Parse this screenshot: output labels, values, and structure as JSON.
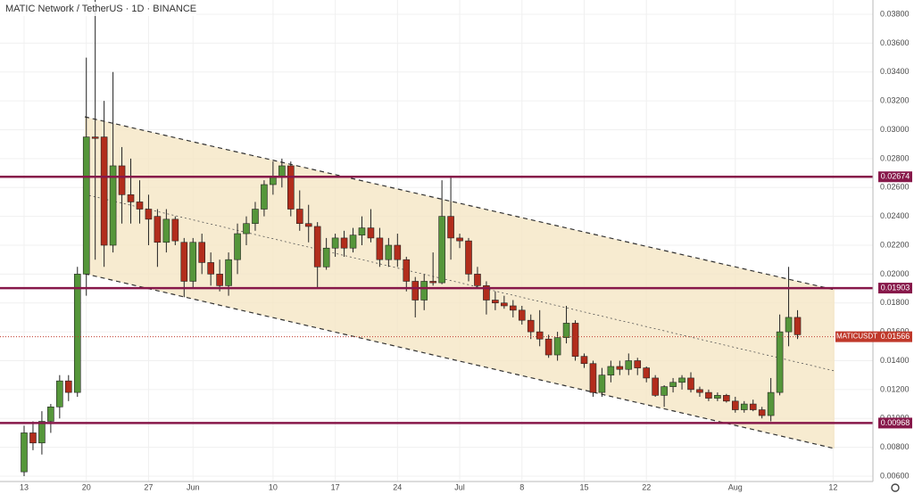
{
  "chart_data": {
    "type": "candlestick",
    "symbol": "MATIC Network / TetherUS",
    "interval": "1D",
    "exchange": "BINANCE",
    "categories": [
      "13",
      null,
      null,
      null,
      null,
      null,
      null,
      "20",
      null,
      null,
      null,
      null,
      null,
      null,
      "27",
      null,
      null,
      null,
      null,
      "Jun",
      null,
      null,
      null,
      null,
      null,
      null,
      null,
      null,
      "10",
      null,
      null,
      null,
      null,
      null,
      null,
      "17",
      null,
      null,
      null,
      null,
      null,
      null,
      "24",
      null,
      null,
      null,
      null,
      null,
      null,
      "Jul",
      null,
      null,
      null,
      null,
      null,
      null,
      "8",
      null,
      null,
      null,
      null,
      null,
      null,
      "15",
      null,
      null,
      null,
      null,
      null,
      null,
      "22",
      null,
      null,
      null,
      null,
      null,
      null,
      null,
      null,
      null,
      "Aug",
      null,
      null,
      null,
      null,
      null,
      null,
      null,
      null,
      null,
      null,
      "12"
    ],
    "open": [
      0.0063,
      0.009,
      0.0083,
      0.0098,
      0.0108,
      0.0126,
      0.0118,
      0.02,
      0.0295,
      0.0295,
      0.022,
      0.0275,
      0.0255,
      0.025,
      0.0245,
      0.024,
      0.0222,
      0.0238,
      0.0222,
      0.0195,
      0.0222,
      0.0208,
      0.02,
      0.0192,
      0.021,
      0.0228,
      0.0235,
      0.0245,
      0.0262,
      0.0268,
      0.0275,
      0.0245,
      0.0235,
      0.0233,
      0.0205,
      0.0218,
      0.0225,
      0.0218,
      0.0227,
      0.0232,
      0.0225,
      0.021,
      0.022,
      0.021,
      0.0195,
      0.0182,
      0.0195,
      0.0194,
      0.024,
      0.0225,
      0.0223,
      0.02,
      0.0192,
      0.0182,
      0.018,
      0.0178,
      0.0175,
      0.0168,
      0.016,
      0.0155,
      0.0144,
      0.0156,
      0.0166,
      0.0143,
      0.0138,
      0.0118,
      0.013,
      0.0136,
      0.0134,
      0.014,
      0.0135,
      0.0128,
      0.0116,
      0.0122,
      0.0125,
      0.0128,
      0.012,
      0.0118,
      0.0114,
      0.0116,
      0.0112,
      0.0106,
      0.011,
      0.0106,
      0.0102,
      0.0118,
      0.016,
      0.017,
      null,
      null,
      null,
      null
    ],
    "high": [
      0.0095,
      0.0098,
      0.0105,
      0.011,
      0.013,
      0.013,
      0.0205,
      0.035,
      0.039,
      0.032,
      0.034,
      0.0288,
      0.028,
      0.0265,
      0.0255,
      0.0245,
      0.0245,
      0.024,
      0.0225,
      0.0225,
      0.0228,
      0.0215,
      0.021,
      0.0215,
      0.0235,
      0.024,
      0.025,
      0.0265,
      0.0278,
      0.028,
      0.0278,
      0.0258,
      0.0248,
      0.0236,
      0.0225,
      0.0228,
      0.023,
      0.0232,
      0.024,
      0.0245,
      0.0232,
      0.0225,
      0.0228,
      0.0212,
      0.0198,
      0.02,
      0.0215,
      0.0265,
      0.0268,
      0.0228,
      0.0225,
      0.0205,
      0.0195,
      0.0188,
      0.0185,
      0.0182,
      0.0178,
      0.0172,
      0.0175,
      0.0158,
      0.016,
      0.0178,
      0.0168,
      0.0145,
      0.014,
      0.0135,
      0.014,
      0.014,
      0.0145,
      0.0142,
      0.0136,
      0.013,
      0.0123,
      0.0128,
      0.013,
      0.0132,
      0.0122,
      0.012,
      0.0118,
      0.0117,
      0.0115,
      0.0112,
      0.0113,
      0.0108,
      0.0128,
      0.0172,
      0.0205,
      0.0175,
      null,
      null,
      null,
      null
    ],
    "low": [
      0.006,
      0.0078,
      0.0075,
      0.009,
      0.01,
      0.0112,
      0.0115,
      0.0185,
      0.021,
      0.0205,
      0.0215,
      0.0235,
      0.0235,
      0.0235,
      0.022,
      0.0205,
      0.0215,
      0.022,
      0.0184,
      0.019,
      0.02,
      0.0192,
      0.0188,
      0.0185,
      0.02,
      0.022,
      0.023,
      0.024,
      0.0255,
      0.026,
      0.024,
      0.023,
      0.0222,
      0.019,
      0.0203,
      0.0212,
      0.0212,
      0.0215,
      0.022,
      0.0222,
      0.0205,
      0.0205,
      0.0205,
      0.0188,
      0.017,
      0.0175,
      0.0192,
      0.0193,
      0.021,
      0.0218,
      0.0195,
      0.019,
      0.0172,
      0.0175,
      0.0176,
      0.017,
      0.0165,
      0.0155,
      0.015,
      0.0142,
      0.014,
      0.0152,
      0.014,
      0.0135,
      0.0115,
      0.0115,
      0.0125,
      0.013,
      0.013,
      0.013,
      0.0125,
      0.0115,
      0.0108,
      0.0118,
      0.012,
      0.0118,
      0.0115,
      0.0112,
      0.0112,
      0.0111,
      0.0104,
      0.0104,
      0.0105,
      0.01,
      0.0098,
      0.0116,
      0.015,
      0.0155,
      null,
      null,
      null,
      null
    ],
    "close": [
      0.009,
      0.0083,
      0.0098,
      0.0108,
      0.0126,
      0.0118,
      0.02,
      0.0295,
      0.0294,
      0.022,
      0.0275,
      0.0255,
      0.025,
      0.0245,
      0.0238,
      0.0222,
      0.0238,
      0.0223,
      0.0195,
      0.0222,
      0.0208,
      0.02,
      0.0192,
      0.021,
      0.0228,
      0.0235,
      0.0245,
      0.0262,
      0.0268,
      0.0275,
      0.0245,
      0.0235,
      0.0233,
      0.0205,
      0.0218,
      0.0225,
      0.0218,
      0.0227,
      0.0232,
      0.0225,
      0.021,
      0.022,
      0.021,
      0.0195,
      0.0182,
      0.0195,
      0.0194,
      0.024,
      0.0225,
      0.0223,
      0.02,
      0.0192,
      0.0182,
      0.018,
      0.0178,
      0.0175,
      0.0168,
      0.016,
      0.0155,
      0.0144,
      0.0156,
      0.0166,
      0.0143,
      0.0138,
      0.0118,
      0.013,
      0.0136,
      0.0134,
      0.014,
      0.0135,
      0.0128,
      0.0116,
      0.0122,
      0.0125,
      0.0128,
      0.012,
      0.0118,
      0.0114,
      0.0116,
      0.0112,
      0.0106,
      0.011,
      0.0106,
      0.0102,
      0.0118,
      0.016,
      0.017,
      0.0158,
      null,
      null,
      null,
      null
    ],
    "up_color": "#55963a",
    "down_color": "#b22d1c",
    "ylim": [
      0.006,
      0.038
    ],
    "yticks": [
      {
        "value": 0.006,
        "label": "0.00600"
      },
      {
        "value": 0.008,
        "label": "0.00800"
      },
      {
        "value": 0.01,
        "label": "0.01000"
      },
      {
        "value": 0.012,
        "label": "0.01200"
      },
      {
        "value": 0.014,
        "label": "0.01400"
      },
      {
        "value": 0.016,
        "label": "0.01600"
      },
      {
        "value": 0.018,
        "label": "0.01800"
      },
      {
        "value": 0.02,
        "label": "0.02000"
      },
      {
        "value": 0.022,
        "label": "0.02200"
      },
      {
        "value": 0.024,
        "label": "0.02400"
      },
      {
        "value": 0.026,
        "label": "0.02600"
      },
      {
        "value": 0.028,
        "label": "0.02800"
      },
      {
        "value": 0.03,
        "label": "0.03000"
      },
      {
        "value": 0.032,
        "label": "0.03200"
      },
      {
        "value": 0.034,
        "label": "0.03400"
      },
      {
        "value": 0.036,
        "label": "0.03600"
      },
      {
        "value": 0.038,
        "label": "0.03800"
      }
    ],
    "grid": true,
    "levels": [
      {
        "value": 0.02674,
        "label": "0.02674"
      },
      {
        "value": 0.01903,
        "label": "0.01903"
      },
      {
        "value": 0.00968,
        "label": "0.00968"
      }
    ],
    "level_color": "#87184a",
    "last_price": {
      "symbol": "MATICUSDT",
      "value": 0.01566,
      "label": "0.01566",
      "color": "#c0392b"
    }
  }
}
